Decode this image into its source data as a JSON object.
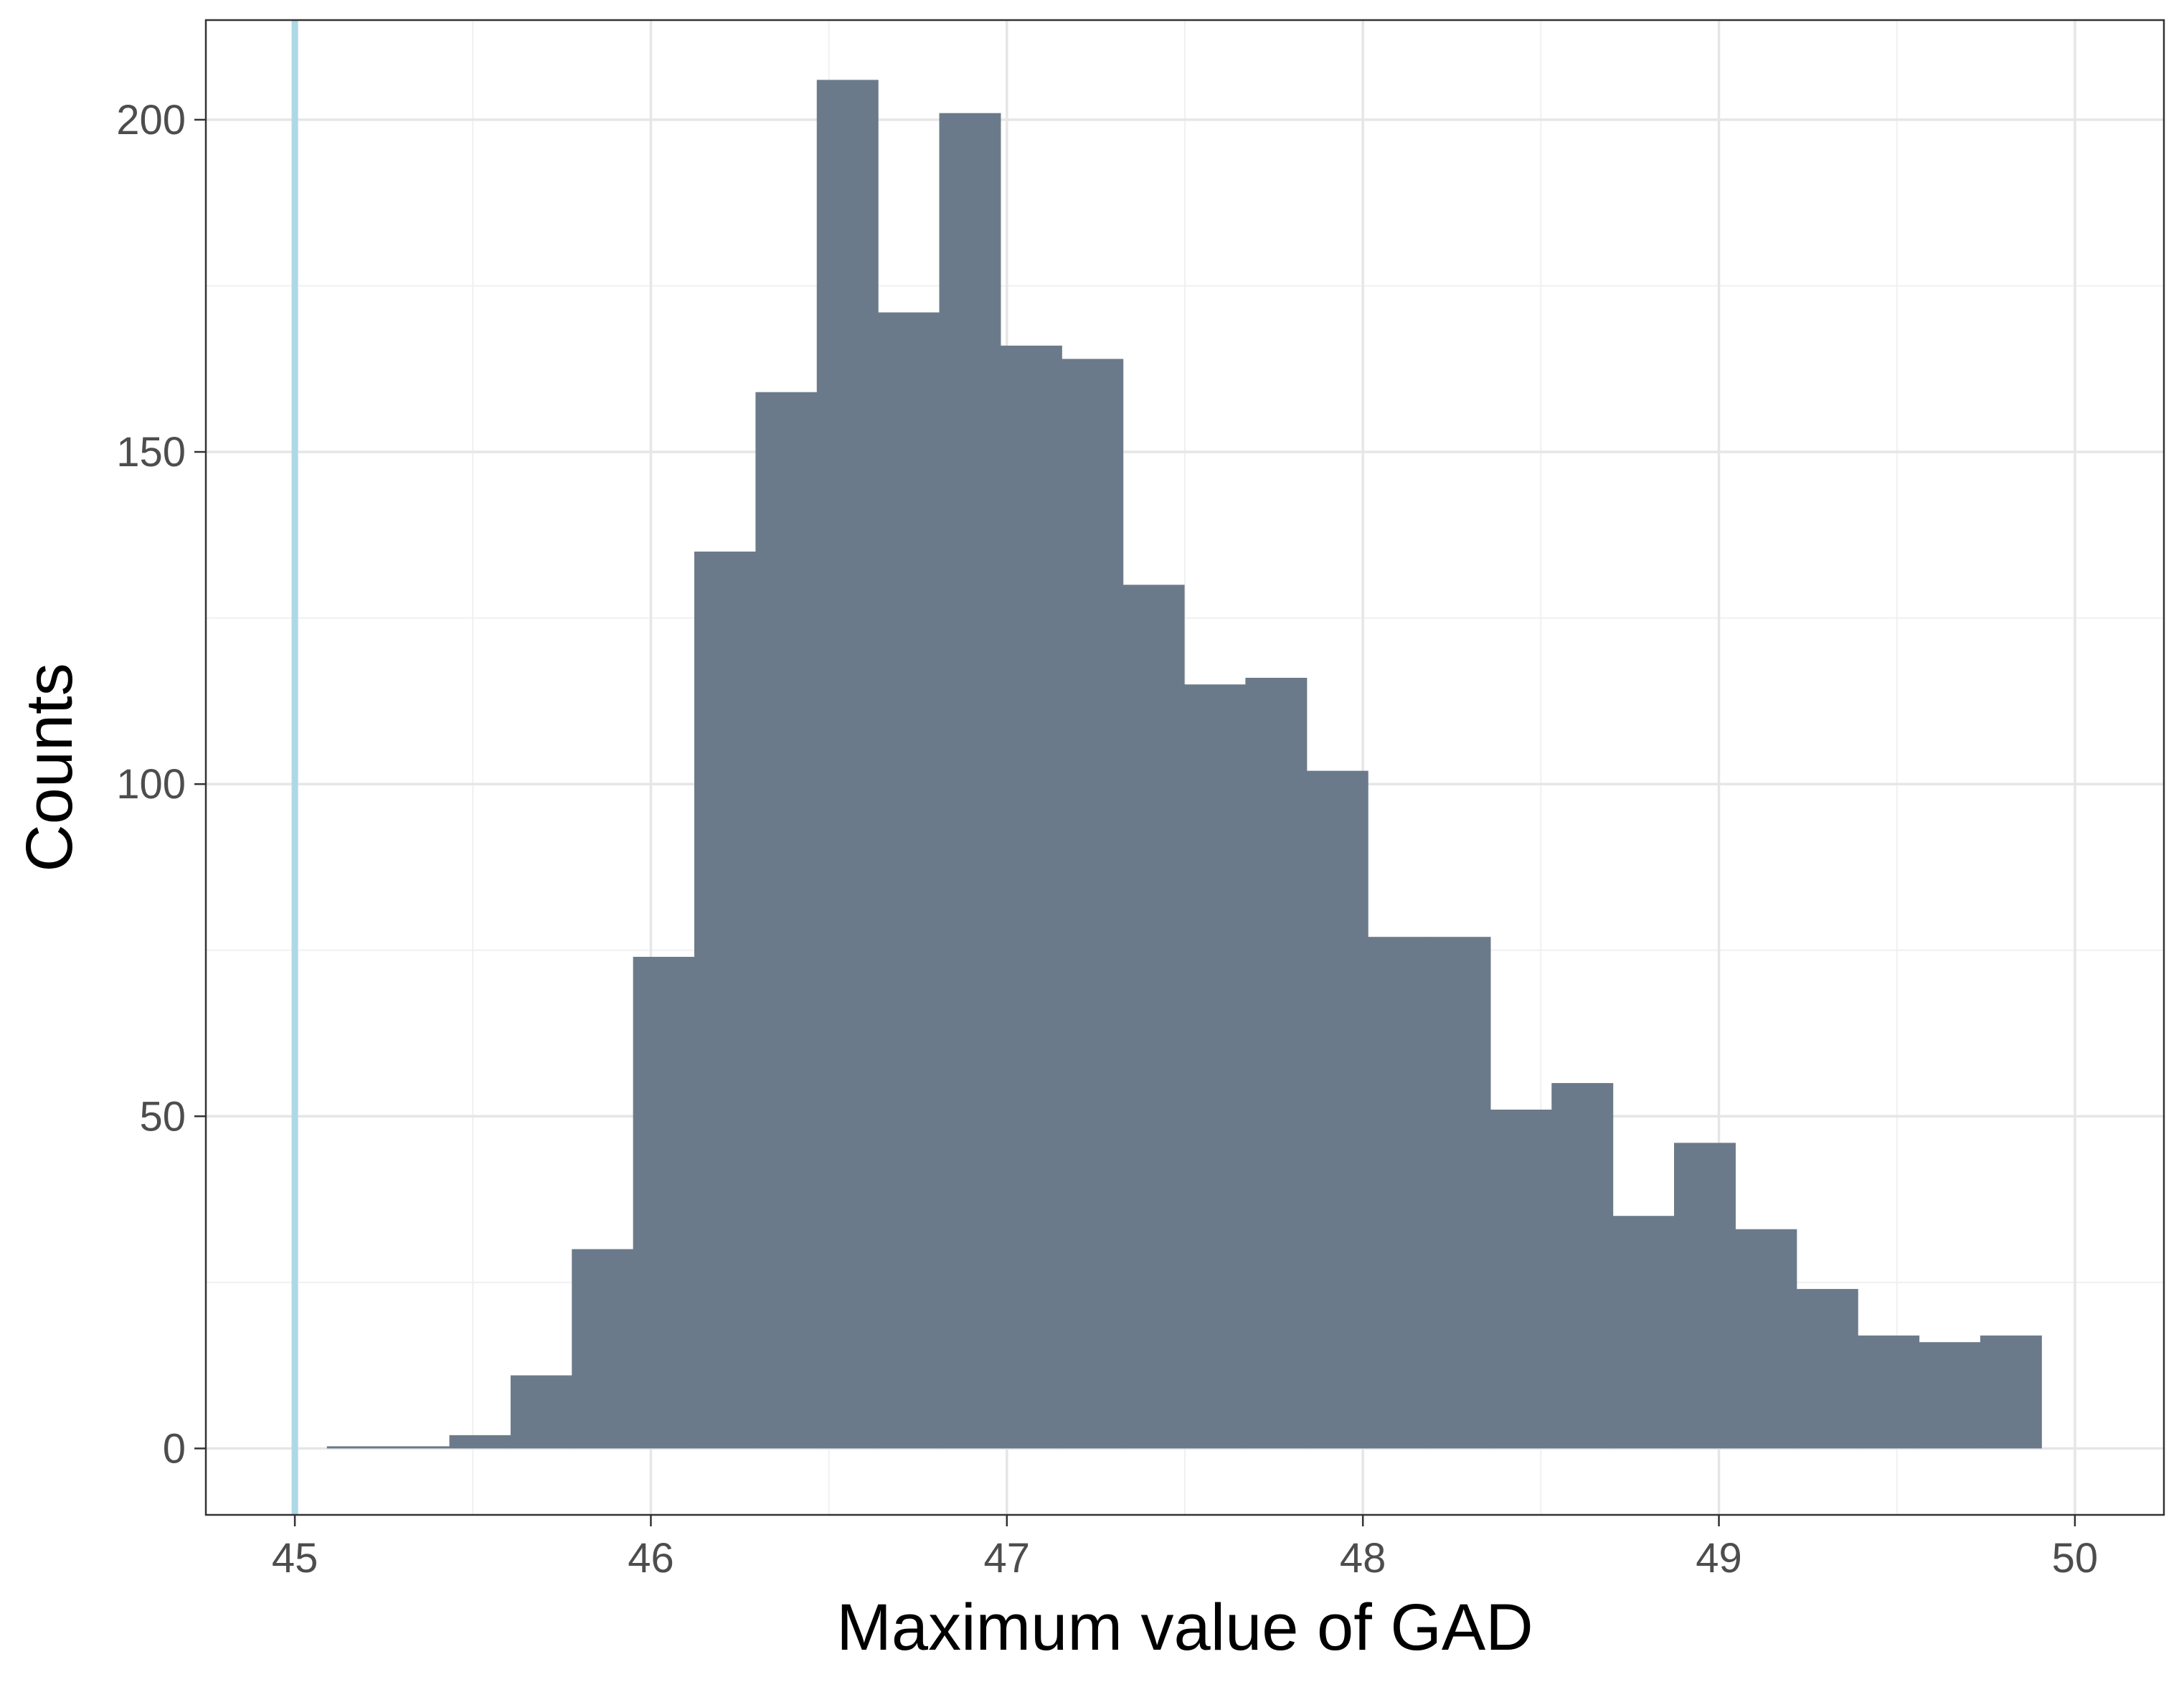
{
  "chart_data": {
    "type": "bar",
    "title": "",
    "xlabel": "Maximum value of GAD",
    "ylabel": "Counts",
    "xlim": [
      44.75,
      50.25
    ],
    "ylim": [
      -10,
      215
    ],
    "x_ticks": [
      45,
      46,
      47,
      48,
      49,
      50
    ],
    "y_ticks": [
      0,
      50,
      100,
      150,
      200
    ],
    "grid": true,
    "bin_width": 0.172,
    "bins_x_start": [
      45.09,
      45.262,
      45.434,
      45.606,
      45.778,
      45.95,
      46.122,
      46.294,
      46.466,
      46.638,
      46.81,
      46.982,
      47.154,
      47.326,
      47.498,
      47.67,
      47.842,
      48.014,
      48.186,
      48.358,
      48.53,
      48.702,
      48.874,
      49.046,
      49.218,
      49.39,
      49.562,
      49.734
    ],
    "values": [
      0,
      0,
      2,
      11,
      30,
      74,
      135,
      159,
      206,
      171,
      201,
      166,
      164,
      130,
      115,
      116,
      102,
      77,
      77,
      51,
      55,
      35,
      46,
      33,
      24,
      17,
      16,
      17
    ],
    "bar_color": "#6b7a8a",
    "reference_line": {
      "x": 45,
      "color": "#add8e6"
    }
  }
}
